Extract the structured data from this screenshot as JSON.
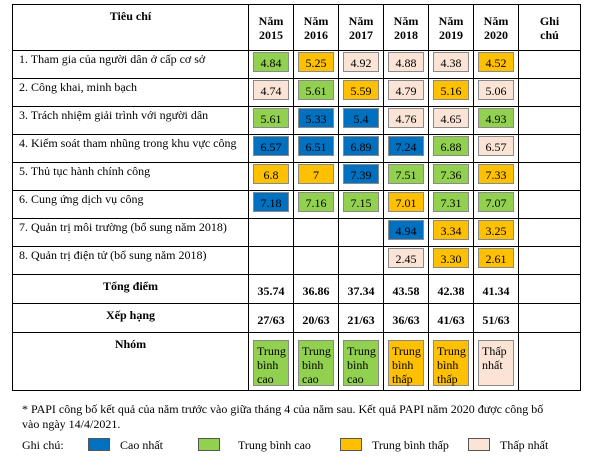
{
  "headers": {
    "criteria": "Tiêu chí",
    "years": [
      "Năm\n2015",
      "Năm\n2016",
      "Năm\n2017",
      "Năm\n2018",
      "Năm\n2019",
      "Năm\n2020"
    ],
    "note_col": "Ghi\nchú"
  },
  "rows": [
    {
      "label": "1. Tham gia của người dân ở cấp cơ sở",
      "values": [
        "4.84",
        "5.25",
        "4.92",
        "4.88",
        "4.38",
        "4.52"
      ],
      "levels": [
        "tbc",
        "tbt",
        "tn",
        "tn",
        "tn",
        "tbt"
      ]
    },
    {
      "label": "2. Công khai, minh bạch",
      "values": [
        "4.74",
        "5.61",
        "5.59",
        "4.79",
        "5.16",
        "5.06"
      ],
      "levels": [
        "tn",
        "tbc",
        "tbt",
        "tn",
        "tbt",
        "tn"
      ]
    },
    {
      "label": "3. Trách nhiệm giải trình với người dân",
      "values": [
        "5.61",
        "5.33",
        "5.4",
        "4.76",
        "4.65",
        "4.93"
      ],
      "levels": [
        "tbc",
        "cn",
        "cn",
        "tn",
        "tn",
        "tbc"
      ]
    },
    {
      "label": "4. Kiểm soát tham nhũng trong khu vực công",
      "values": [
        "6.57",
        "6.51",
        "6.89",
        "7.24",
        "6.88",
        "6.57"
      ],
      "levels": [
        "cn",
        "cn",
        "cn",
        "cn",
        "tbc",
        "tn"
      ]
    },
    {
      "label": "5. Thủ tục hành chính công",
      "values": [
        "6.8",
        "7",
        "7.39",
        "7.51",
        "7.36",
        "7.33"
      ],
      "levels": [
        "tbt",
        "tbt",
        "cn",
        "tbc",
        "tbc",
        "tbt"
      ]
    },
    {
      "label": "6. Cung ứng dịch vụ công",
      "values": [
        "7.18",
        "7.16",
        "7.15",
        "7.01",
        "7.31",
        "7.07"
      ],
      "levels": [
        "cn",
        "tbc",
        "tbc",
        "tbt",
        "tbc",
        "tbc"
      ]
    },
    {
      "label": "7. Quản trị môi trường (bổ sung năm 2018)",
      "values": [
        "",
        "",
        "",
        "4.94",
        "3.34",
        "3.25"
      ],
      "levels": [
        "",
        "",
        "",
        "cn",
        "tbt",
        "tbt"
      ]
    },
    {
      "label": "8. Quản trị điện tử (bổ sung năm 2018)",
      "values": [
        "",
        "",
        "",
        "2.45",
        "3.30",
        "2.61"
      ],
      "levels": [
        "",
        "",
        "",
        "tn",
        "tbt",
        "tbt"
      ]
    }
  ],
  "total": {
    "label": "Tổng điểm",
    "values": [
      "35.74",
      "36.86",
      "37.34",
      "43.58",
      "42.38",
      "41.34"
    ]
  },
  "rank": {
    "label": "Xếp hạng",
    "values": [
      "27/63",
      "20/63",
      "21/63",
      "36/63",
      "41/63",
      "51/63"
    ]
  },
  "group": {
    "label": "Nhóm",
    "values": [
      "Trung\nbình\ncao",
      "Trung\nbình\ncao",
      "Trung\nbình\ncao",
      "Trung\nbình\nthấp",
      "Trung\nbình\nthấp",
      "Thấp\nnhất"
    ],
    "levels": [
      "tbc",
      "tbc",
      "tbc",
      "tbt",
      "tbt",
      "tn"
    ]
  },
  "colors": {
    "cn": "#0070c0",
    "tbc": "#92d050",
    "tbt": "#ffc000",
    "tn": "#fbe4d5"
  },
  "footnote": "* PAPI công bố kết quả của năm trước vào giữa tháng 4 của năm sau. Kết quả PAPI năm 2020 được công bố vào ngày 14/4/2021.",
  "legend": {
    "title": "Ghi chú:",
    "items": [
      {
        "key": "cn",
        "label": "Cao nhất"
      },
      {
        "key": "tbc",
        "label": "Trung bình cao"
      },
      {
        "key": "tbt",
        "label": "Trung bình thấp"
      },
      {
        "key": "tn",
        "label": "Thấp nhất"
      }
    ]
  }
}
